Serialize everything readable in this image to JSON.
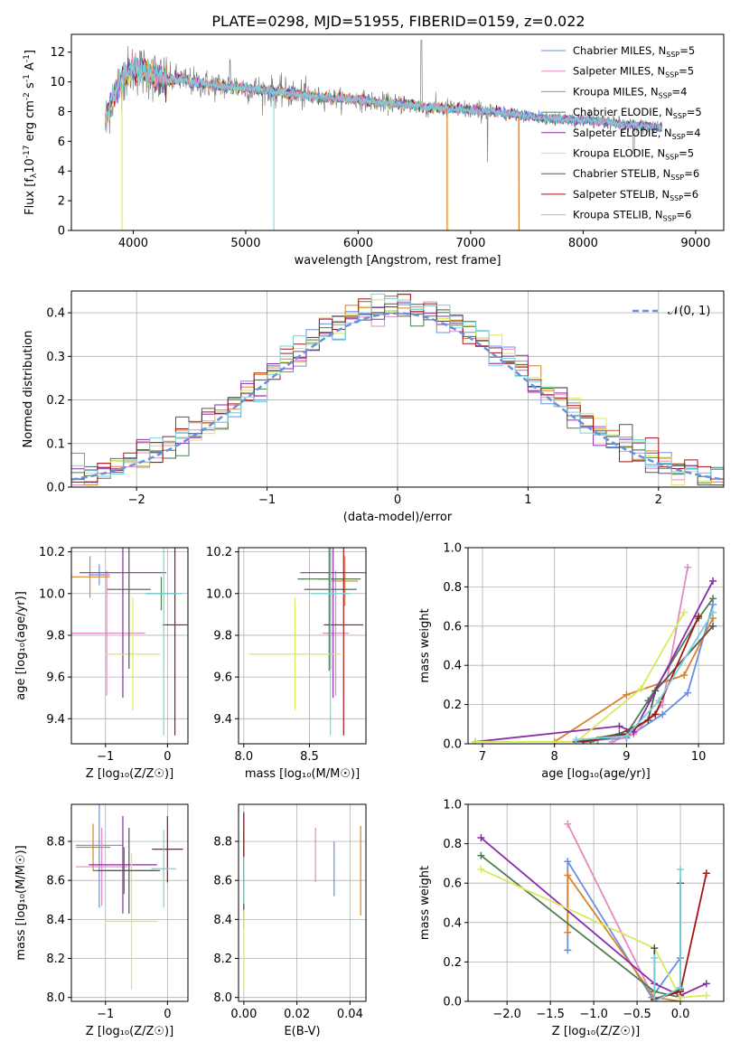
{
  "figure_title": "PLATE=0298, MJD=51955, FIBERID=0159, z=0.022",
  "colors": {
    "Chabrier MILES": "#6a8fdf",
    "Salpeter MILES": "#e58ac1",
    "Kroupa MILES": "#d9822b",
    "Chabrier ELODIE": "#4f7d4f",
    "Salpeter ELODIE": "#8a2bae",
    "Kroupa ELODIE": "#d7ea5a",
    "Chabrier STELIB": "#555555",
    "Salpeter STELIB": "#a31515",
    "Kroupa STELIB": "#74d3d8",
    "data": "#808080",
    "gauss": "#6a8fdf"
  },
  "chart_data": [
    {
      "id": "spectrum",
      "type": "line",
      "xlabel": "wavelength [Angstrom, rest frame]",
      "ylabel_main": "Flux [f",
      "ylabel_sub": "λ",
      "ylabel_rest": "10",
      "ylabel_exp": "-17",
      "ylabel_unit": " erg cm",
      "ylabel_exp2": "-2",
      "ylabel_s": " s",
      "ylabel_exp3": "-1",
      "ylabel_A": " A",
      "ylabel_exp4": "-1",
      "ylabel_end": "]",
      "xlim": [
        3450,
        9250
      ],
      "ylim": [
        0,
        13.2
      ],
      "xticks": [
        4000,
        5000,
        6000,
        7000,
        8000,
        9000
      ],
      "yticks": [
        0,
        2,
        4,
        6,
        8,
        10,
        12
      ],
      "continuum_wave": [
        3750,
        3800,
        3850,
        3900,
        3950,
        4000,
        4100,
        4200,
        4300,
        4400,
        4500,
        4600,
        4700,
        4800,
        4900,
        5000,
        5200,
        5400,
        5600,
        5800,
        6000,
        6200,
        6400,
        6600,
        6800,
        7000,
        7200,
        7400,
        7600,
        7800,
        8000,
        8200,
        8400,
        8600,
        8700
      ],
      "continuum_flux": [
        7.2,
        8.6,
        9.5,
        10.2,
        10.6,
        10.9,
        10.7,
        10.4,
        10.1,
        10.2,
        10.0,
        9.9,
        9.8,
        9.7,
        9.7,
        9.6,
        9.4,
        9.2,
        9.0,
        8.9,
        8.8,
        8.6,
        8.5,
        8.3,
        8.2,
        8.1,
        8.0,
        7.8,
        7.6,
        7.5,
        7.4,
        7.3,
        7.1,
        7.0,
        6.9
      ],
      "model_cutoffs": [
        {
          "name": "Kroupa ELODIE",
          "max_wave": 6800
        },
        {
          "name": "Salpeter STELIB",
          "max_wave": 7430
        },
        {
          "name": "Kroupa MILES",
          "max_wave": 7430
        }
      ],
      "legend": [
        {
          "name": "Chabrier MILES",
          "n": "5"
        },
        {
          "name": "Salpeter MILES",
          "n": "5"
        },
        {
          "name": "Kroupa MILES",
          "n": "4"
        },
        {
          "name": "Chabrier ELODIE",
          "n": "5"
        },
        {
          "name": "Salpeter ELODIE",
          "n": "4"
        },
        {
          "name": "Kroupa ELODIE",
          "n": "5"
        },
        {
          "name": "Chabrier STELIB",
          "n": "6"
        },
        {
          "name": "Salpeter STELIB",
          "n": "6"
        },
        {
          "name": "Kroupa STELIB",
          "n": "6"
        }
      ],
      "legend_suffix_pre": ", N",
      "legend_suffix_sub": "SSP",
      "legend_suffix_eq": "="
    },
    {
      "id": "residuals",
      "type": "area",
      "xlabel": "(data-model)/error",
      "ylabel": "Normed distribution",
      "xlim": [
        -2.5,
        2.5
      ],
      "ylim": [
        0,
        0.45
      ],
      "xticks": [
        -2,
        -1,
        0,
        1,
        2
      ],
      "yticks": [
        0.0,
        0.1,
        0.2,
        0.3,
        0.4
      ],
      "bin_width": 0.1,
      "gauss_label": "𝒩(0, 1)"
    },
    {
      "id": "age_vs_Z",
      "type": "scatter",
      "xlabel": "Z [log₁₀(Z/Z☉)]",
      "ylabel": "age  [log₁₀(age/yr)]",
      "xlim": [
        -1.55,
        0.33
      ],
      "ylim": [
        9.28,
        10.22
      ],
      "xticks": [
        -1,
        0
      ],
      "yticks": [
        9.4,
        9.6,
        9.8,
        10.0,
        10.2
      ],
      "points": [
        {
          "name": "Chabrier MILES",
          "x": -1.1,
          "xerr": 0.17,
          "y": 10.09,
          "yerr": 0.05
        },
        {
          "name": "Salpeter MILES",
          "x": -0.98,
          "xerr": 0.62,
          "y": 9.81,
          "yerr": 0.3
        },
        {
          "name": "Kroupa MILES",
          "x": -1.25,
          "xerr": 0.32,
          "y": 10.08,
          "yerr": 0.1
        },
        {
          "name": "Chabrier ELODIE",
          "x": -0.1,
          "xerr": 0.25,
          "y": 10.0,
          "yerr": 0.08
        },
        {
          "name": "Salpeter ELODIE",
          "x": -0.72,
          "xerr": 0.7,
          "y": 10.1,
          "yerr": 0.6
        },
        {
          "name": "Kroupa ELODIE",
          "x": -0.56,
          "xerr": 0.44,
          "y": 9.71,
          "yerr": 0.27
        },
        {
          "name": "Chabrier STELIB",
          "x": -0.62,
          "xerr": 0.35,
          "y": 10.02,
          "yerr": 0.38
        },
        {
          "name": "Salpeter STELIB",
          "x": 0.12,
          "xerr": 0.2,
          "y": 9.85,
          "yerr": 0.53
        },
        {
          "name": "Kroupa STELIB",
          "x": -0.06,
          "xerr": 0.3,
          "y": 10.0,
          "yerr": 0.68
        }
      ]
    },
    {
      "id": "age_vs_mass",
      "type": "scatter",
      "xlabel": "mass [log₁₀(M/M☉)]",
      "xlim": [
        7.96,
        8.93
      ],
      "ylim": [
        9.28,
        10.22
      ],
      "xticks": [
        8.0,
        8.5
      ],
      "yticks": [
        9.4,
        9.6,
        9.8,
        10.0,
        10.2
      ],
      "points": [
        {
          "name": "Chabrier MILES",
          "x": 8.66,
          "xerr": 0.1,
          "y": 10.07,
          "yerr": 0.2
        },
        {
          "name": "Salpeter MILES",
          "x": 8.7,
          "xerr": 0.1,
          "y": 9.81,
          "yerr": 0.3
        },
        {
          "name": "Kroupa MILES",
          "x": 8.77,
          "xerr": 0.1,
          "y": 10.06,
          "yerr": 0.12
        },
        {
          "name": "Chabrier ELODIE",
          "x": 8.65,
          "xerr": 0.24,
          "y": 10.07,
          "yerr": 0.44
        },
        {
          "name": "Salpeter ELODIE",
          "x": 8.68,
          "xerr": 0.25,
          "y": 10.1,
          "yerr": 0.6
        },
        {
          "name": "Kroupa ELODIE",
          "x": 8.39,
          "xerr": 0.35,
          "y": 9.71,
          "yerr": 0.27
        },
        {
          "name": "Chabrier STELIB",
          "x": 8.66,
          "xerr": 0.2,
          "y": 10.02,
          "yerr": 0.38
        },
        {
          "name": "Salpeter STELIB",
          "x": 8.76,
          "xerr": 0.15,
          "y": 9.85,
          "yerr": 0.53
        },
        {
          "name": "Kroupa STELIB",
          "x": 8.66,
          "xerr": 0.15,
          "y": 10.0,
          "yerr": 0.68
        }
      ]
    },
    {
      "id": "weight_vs_age",
      "type": "line",
      "xlabel": "age  [log₁₀(age/yr)]",
      "ylabel": "mass weight",
      "xlim": [
        6.8,
        10.35
      ],
      "ylim": [
        0,
        1
      ],
      "xticks": [
        7,
        8,
        9,
        10
      ],
      "yticks": [
        0.0,
        0.2,
        0.4,
        0.6,
        0.8,
        1.0
      ],
      "series": [
        {
          "name": "Chabrier MILES",
          "x": [
            8.6,
            9.0,
            9.5,
            9.85,
            10.2
          ],
          "y": [
            0.02,
            0.03,
            0.15,
            0.26,
            0.71
          ]
        },
        {
          "name": "Salpeter MILES",
          "x": [
            8.8,
            9.1,
            9.5,
            9.85
          ],
          "y": [
            0.01,
            0.05,
            0.2,
            0.9
          ]
        },
        {
          "name": "Kroupa MILES",
          "x": [
            8.0,
            9.0,
            9.8,
            10.2
          ],
          "y": [
            0.01,
            0.25,
            0.35,
            0.64
          ]
        },
        {
          "name": "Chabrier ELODIE",
          "x": [
            8.5,
            9.0,
            9.3,
            10.0,
            10.2
          ],
          "y": [
            0.01,
            0.05,
            0.22,
            0.64,
            0.74
          ]
        },
        {
          "name": "Salpeter ELODIE",
          "x": [
            6.9,
            8.9,
            9.1,
            10.2
          ],
          "y": [
            0.01,
            0.09,
            0.06,
            0.83
          ]
        },
        {
          "name": "Kroupa ELODIE",
          "x": [
            6.9,
            8.3,
            9.2,
            9.8
          ],
          "y": [
            0.01,
            0.01,
            0.28,
            0.67
          ]
        },
        {
          "name": "Chabrier STELIB",
          "x": [
            8.3,
            8.9,
            9.3,
            9.4,
            10.2
          ],
          "y": [
            0.01,
            0.05,
            0.12,
            0.27,
            0.6
          ]
        },
        {
          "name": "Salpeter STELIB",
          "x": [
            8.4,
            9.0,
            9.4,
            10.0
          ],
          "y": [
            0.01,
            0.05,
            0.15,
            0.65
          ]
        },
        {
          "name": "Kroupa STELIB",
          "x": [
            8.3,
            9.0,
            9.45,
            10.2
          ],
          "y": [
            0.02,
            0.04,
            0.22,
            0.67
          ]
        }
      ]
    },
    {
      "id": "mass_vs_Z",
      "type": "scatter",
      "xlabel": "Z [log₁₀(Z/Z☉)]",
      "ylabel": "mass [log₁₀(M/M☉)]",
      "xlim": [
        -1.55,
        0.33
      ],
      "ylim": [
        7.98,
        8.99
      ],
      "xticks": [
        -1,
        0
      ],
      "yticks": [
        8.0,
        8.2,
        8.4,
        8.6,
        8.8
      ],
      "points": [
        {
          "name": "Chabrier MILES",
          "x": -1.1,
          "xerr": 0.38,
          "y": 8.78,
          "yerr": 0.32
        },
        {
          "name": "Salpeter MILES",
          "x": -1.06,
          "xerr": 0.42,
          "y": 8.67,
          "yerr": 0.2
        },
        {
          "name": "Kroupa MILES",
          "x": -1.2,
          "xerr": 0.28,
          "y": 8.77,
          "yerr": 0.12
        },
        {
          "name": "Chabrier ELODIE",
          "x": -0.7,
          "xerr": 0.5,
          "y": 8.65,
          "yerr": 0.12
        },
        {
          "name": "Salpeter ELODIE",
          "x": -0.72,
          "xerr": 0.55,
          "y": 8.68,
          "yerr": 0.25
        },
        {
          "name": "Kroupa ELODIE",
          "x": -0.58,
          "xerr": 0.42,
          "y": 8.39,
          "yerr": 0.35
        },
        {
          "name": "Chabrier STELIB",
          "x": -0.62,
          "xerr": 0.5,
          "y": 8.65,
          "yerr": 0.22
        },
        {
          "name": "Salpeter STELIB",
          "x": 0.0,
          "xerr": 0.25,
          "y": 8.76,
          "yerr": 0.17
        },
        {
          "name": "Kroupa STELIB",
          "x": -0.06,
          "xerr": 0.2,
          "y": 8.66,
          "yerr": 0.2
        }
      ]
    },
    {
      "id": "mass_vs_ebv",
      "type": "scatter",
      "xlabel": "E(B-V)",
      "xlim": [
        -0.002,
        0.046
      ],
      "ylim": [
        7.98,
        8.99
      ],
      "xticks": [
        0.0,
        0.02,
        0.04
      ],
      "yticks": [
        8.0,
        8.2,
        8.4,
        8.6,
        8.8
      ],
      "points": [
        {
          "name": "Chabrier MILES",
          "x": 0.034,
          "y": 8.66,
          "yerr": 0.14
        },
        {
          "name": "Salpeter MILES",
          "x": 0.027,
          "y": 8.73,
          "yerr": 0.14
        },
        {
          "name": "Kroupa MILES",
          "x": 0.044,
          "y": 8.65,
          "yerr": 0.23
        },
        {
          "name": "Chabrier ELODIE",
          "x": 0.0,
          "y": 8.65,
          "yerr": 0.3
        },
        {
          "name": "Salpeter ELODIE",
          "x": 0.0,
          "y": 8.68,
          "yerr": 0.27
        },
        {
          "name": "Kroupa ELODIE",
          "x": 0.0,
          "y": 8.38,
          "yerr": 0.35
        },
        {
          "name": "Chabrier STELIB",
          "x": 0.0,
          "y": 8.65,
          "yerr": 0.2
        },
        {
          "name": "Salpeter STELIB",
          "x": 0.0,
          "y": 8.76,
          "yerr": 0.18
        },
        {
          "name": "Kroupa STELIB",
          "x": 0.0,
          "y": 8.6,
          "yerr": 0.12
        }
      ]
    },
    {
      "id": "weight_vs_Z",
      "type": "line",
      "xlabel": "Z [log₁₀(Z/Z☉)]",
      "ylabel": "mass weight",
      "xlim": [
        -2.45,
        0.5
      ],
      "ylim": [
        0,
        1
      ],
      "xticks": [
        -2.0,
        -1.5,
        -1.0,
        -0.5,
        0.0
      ],
      "yticks": [
        0.0,
        0.2,
        0.4,
        0.6,
        0.8,
        1.0
      ],
      "series": [
        {
          "name": "Chabrier MILES",
          "x": [
            -1.3,
            -1.3,
            -0.33,
            0.0,
            0.0
          ],
          "y": [
            0.26,
            0.71,
            0.02,
            0.22,
            0.6
          ]
        },
        {
          "name": "Salpeter MILES",
          "x": [
            -1.3,
            -0.3,
            0.0
          ],
          "y": [
            0.9,
            0.01,
            0.05
          ]
        },
        {
          "name": "Kroupa MILES",
          "x": [
            -1.3,
            -1.3,
            -0.3,
            0.0
          ],
          "y": [
            0.35,
            0.64,
            0.02,
            0.0
          ]
        },
        {
          "name": "Chabrier ELODIE",
          "x": [
            -2.3,
            -0.3,
            0.0
          ],
          "y": [
            0.74,
            0.05,
            0.02
          ]
        },
        {
          "name": "Salpeter ELODIE",
          "x": [
            -2.3,
            -0.3,
            0.0,
            0.3
          ],
          "y": [
            0.83,
            0.09,
            0.03,
            0.09
          ]
        },
        {
          "name": "Kroupa ELODIE",
          "x": [
            -2.3,
            -0.3,
            0.0,
            0.3
          ],
          "y": [
            0.67,
            0.27,
            0.02,
            0.03
          ]
        },
        {
          "name": "Chabrier STELIB",
          "x": [
            -0.3,
            -0.3,
            0.0,
            0.0
          ],
          "y": [
            0.27,
            0.01,
            0.06,
            0.6
          ]
        },
        {
          "name": "Salpeter STELIB",
          "x": [
            -0.3,
            0.0,
            0.3
          ],
          "y": [
            0.01,
            0.05,
            0.65
          ]
        },
        {
          "name": "Kroupa STELIB",
          "x": [
            -0.3,
            -0.3,
            0.0,
            0.0
          ],
          "y": [
            0.22,
            0.0,
            0.07,
            0.67
          ]
        }
      ]
    }
  ]
}
